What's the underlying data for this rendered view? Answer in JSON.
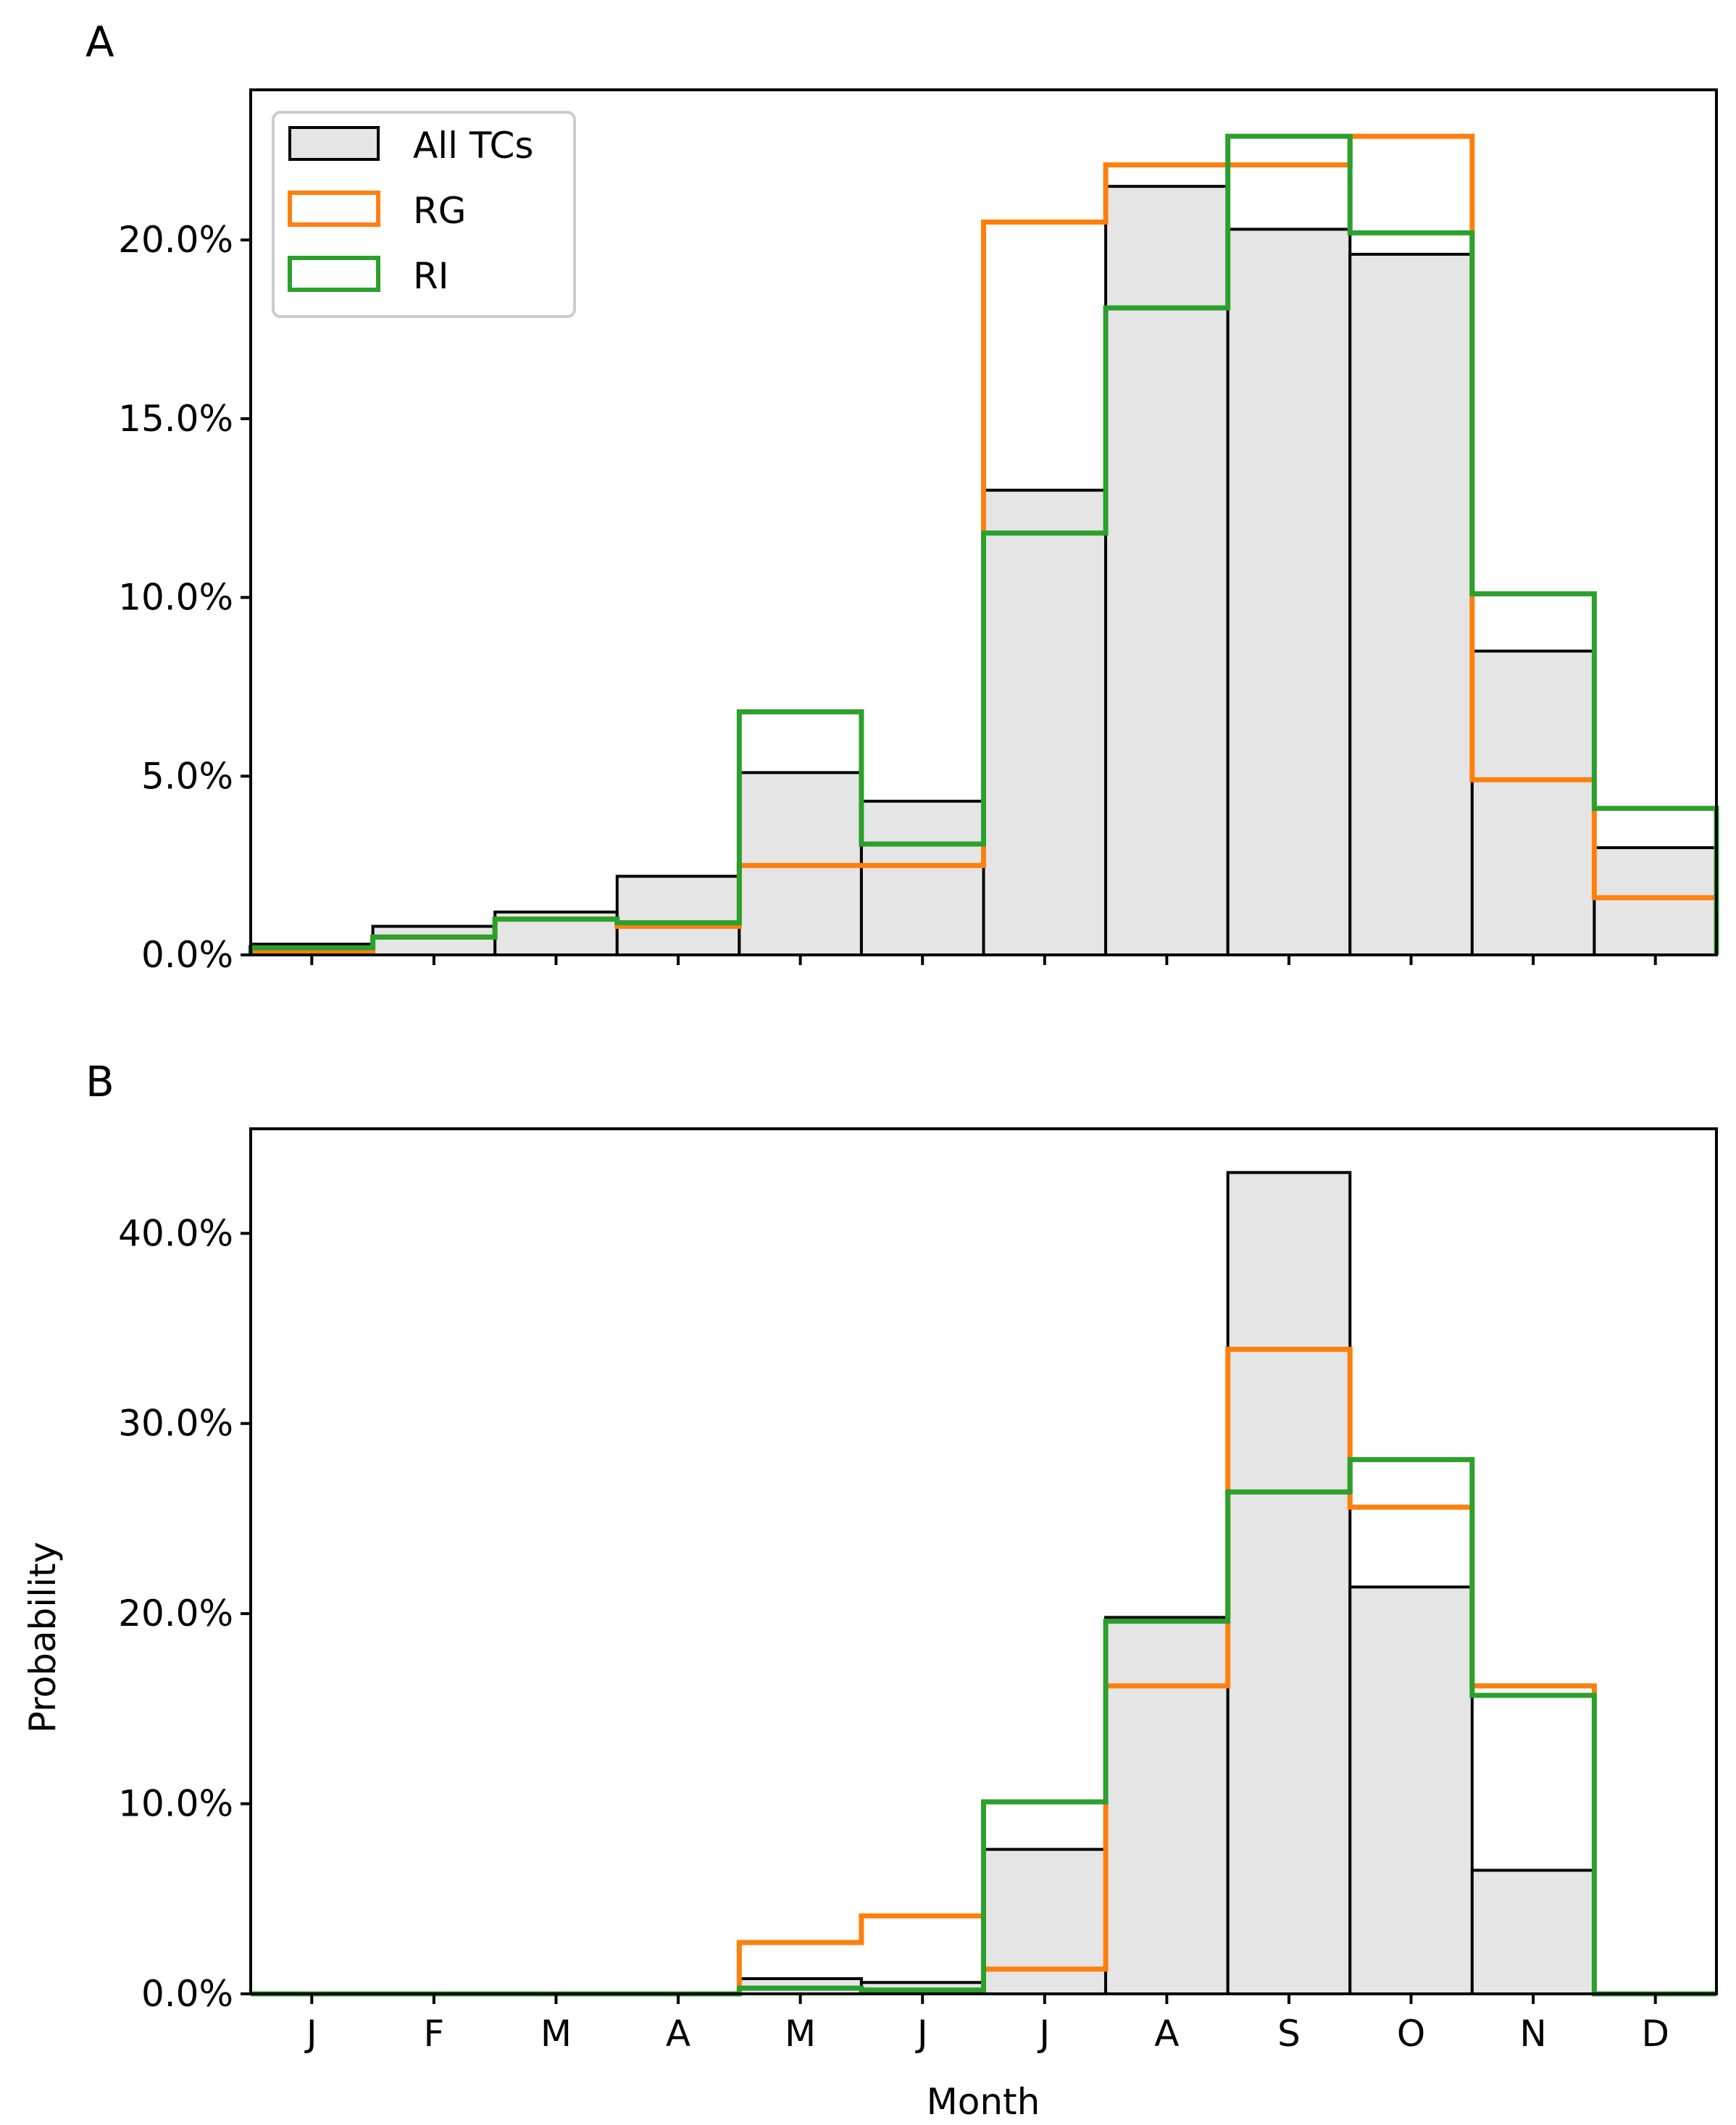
{
  "figure": {
    "ylabel": "Probability",
    "xlabel": "Month"
  },
  "colors": {
    "all_fill": "#e5e5e5",
    "all_edge": "#000000",
    "rg": "#ff7f0e",
    "ri": "#2ca02c"
  },
  "chart_data": [
    {
      "type": "bar",
      "panel_label": "A",
      "categories": [
        "J",
        "F",
        "M",
        "A",
        "M",
        "J",
        "J",
        "A",
        "S",
        "O",
        "N",
        "D"
      ],
      "ylim": [
        0,
        24.2
      ],
      "yticks": [
        0,
        5,
        10,
        15,
        20
      ],
      "ytick_labels": [
        "0.0%",
        "5.0%",
        "10.0%",
        "15.0%",
        "20.0%"
      ],
      "show_xtick_labels": false,
      "legend": {
        "position": "top-left",
        "entries": [
          "All TCs",
          "RG",
          "RI"
        ]
      },
      "series": [
        {
          "name": "All TCs",
          "style": "filled",
          "values": [
            0.3,
            0.8,
            1.2,
            2.2,
            5.1,
            4.3,
            13.0,
            21.5,
            20.3,
            19.6,
            8.5,
            3.0
          ]
        },
        {
          "name": "RG",
          "style": "step-orange",
          "values": [
            0.1,
            0.5,
            1.0,
            0.8,
            2.5,
            2.5,
            20.5,
            22.1,
            22.1,
            22.9,
            4.9,
            1.6
          ]
        },
        {
          "name": "RI",
          "style": "step-green",
          "values": [
            0.2,
            0.5,
            1.0,
            0.9,
            6.8,
            3.1,
            11.8,
            18.1,
            22.9,
            20.2,
            10.1,
            4.1
          ]
        }
      ]
    },
    {
      "type": "bar",
      "panel_label": "B",
      "categories": [
        "J",
        "F",
        "M",
        "A",
        "M",
        "J",
        "J",
        "A",
        "S",
        "O",
        "N",
        "D"
      ],
      "ylim": [
        0,
        45.5
      ],
      "yticks": [
        0,
        10,
        20,
        30,
        40
      ],
      "ytick_labels": [
        "0.0%",
        "10.0%",
        "20.0%",
        "30.0%",
        "40.0%"
      ],
      "show_xtick_labels": true,
      "series": [
        {
          "name": "All TCs",
          "style": "filled",
          "values": [
            0,
            0,
            0,
            0,
            0.8,
            0.6,
            7.6,
            19.8,
            43.2,
            21.4,
            6.5,
            0
          ]
        },
        {
          "name": "RG",
          "style": "step-orange",
          "values": [
            0,
            0,
            0,
            0,
            2.7,
            4.1,
            1.3,
            16.2,
            33.9,
            25.6,
            16.2,
            0
          ]
        },
        {
          "name": "RI",
          "style": "step-green",
          "values": [
            0,
            0,
            0,
            0,
            0.3,
            0.2,
            10.1,
            19.6,
            26.4,
            28.1,
            15.7,
            0
          ]
        }
      ]
    }
  ]
}
